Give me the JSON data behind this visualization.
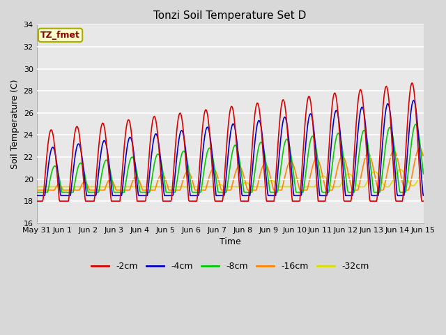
{
  "title": "Tonzi Soil Temperature Set D",
  "xlabel": "Time",
  "ylabel": "Soil Temperature (C)",
  "ylim": [
    16,
    34
  ],
  "xlim_days": [
    0,
    15
  ],
  "annotation_text": "TZ_fmet",
  "annotation_color": "#880000",
  "annotation_bg": "#ffffcc",
  "annotation_border": "#aaaa00",
  "fig_bg": "#d8d8d8",
  "plot_bg": "#e8e8e8",
  "series": {
    "-2cm": {
      "color": "#dd0000",
      "lw": 1.2
    },
    "-4cm": {
      "color": "#0000cc",
      "lw": 1.2
    },
    "-8cm": {
      "color": "#00cc00",
      "lw": 1.2
    },
    "-16cm": {
      "color": "#ff8800",
      "lw": 1.2
    },
    "-32cm": {
      "color": "#dddd00",
      "lw": 1.2
    }
  },
  "xtick_labels": [
    "May 31",
    "Jun 1",
    "Jun 2",
    "Jun 3",
    "Jun 4",
    "Jun 5",
    "Jun 6",
    "Jun 7",
    "Jun 8",
    "Jun 9",
    "Jun 10",
    "Jun 11",
    "Jun 12",
    "Jun 13",
    "Jun 14",
    "Jun 15"
  ],
  "xtick_positions": [
    0,
    1,
    2,
    3,
    4,
    5,
    6,
    7,
    8,
    9,
    10,
    11,
    12,
    13,
    14,
    15
  ],
  "ytick_positions": [
    16,
    18,
    20,
    22,
    24,
    26,
    28,
    30,
    32,
    34
  ],
  "grid_color": "#cccccc",
  "title_fontsize": 11,
  "label_fontsize": 9,
  "tick_fontsize": 8
}
